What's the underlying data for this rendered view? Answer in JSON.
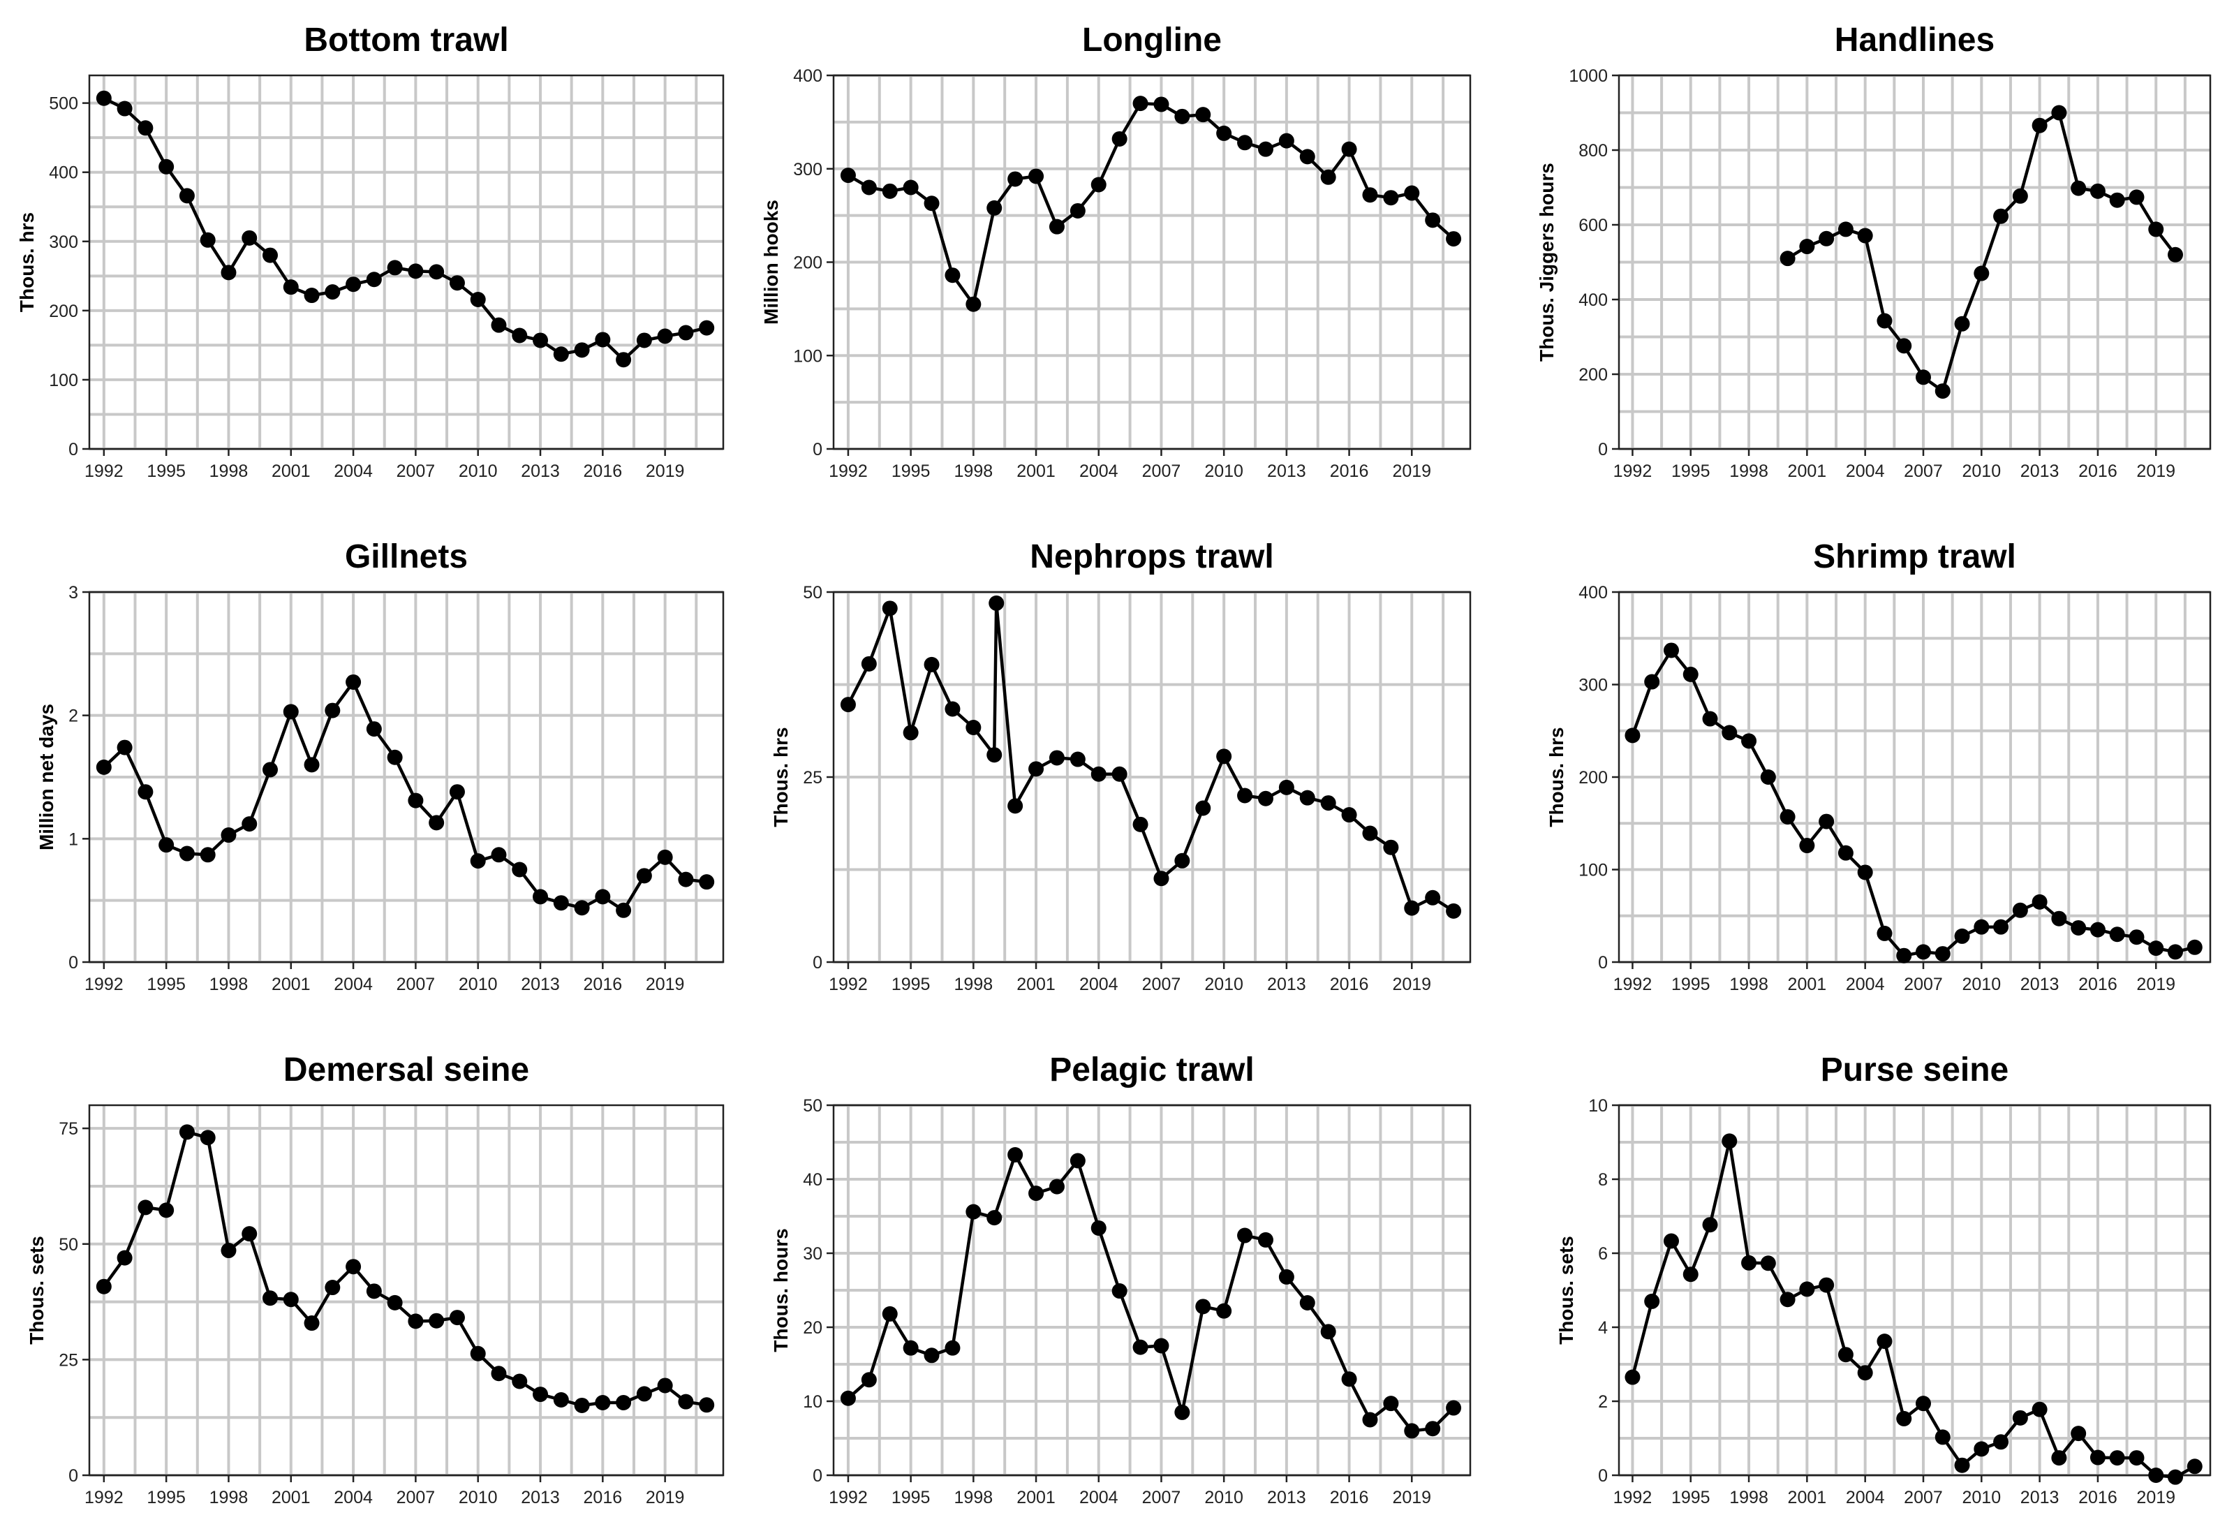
{
  "chart_data": [
    {
      "type": "line",
      "title": "Bottom trawl",
      "ylabel": "Thous. hrs",
      "xlabel": "",
      "ylim": [
        0,
        540
      ],
      "yticks": [
        0,
        100,
        200,
        300,
        400,
        500
      ],
      "xlim": [
        1991.3,
        2021.8
      ],
      "xticks": [
        1992,
        1995,
        1998,
        2001,
        2004,
        2007,
        2010,
        2013,
        2016,
        2019
      ],
      "grid": true,
      "x": [
        1992,
        1993,
        1994,
        1995,
        1996,
        1997,
        1998,
        1999,
        2000,
        2001,
        2002,
        2003,
        2004,
        2005,
        2006,
        2007,
        2008,
        2009,
        2010,
        2011,
        2012,
        2013,
        2014,
        2015,
        2016,
        2017,
        2018,
        2019,
        2020,
        2021
      ],
      "values": [
        507,
        492,
        464,
        408,
        366,
        302,
        255,
        305,
        280,
        234,
        222,
        227,
        238,
        245,
        262,
        257,
        256,
        240,
        216,
        179,
        164,
        157,
        137,
        143,
        158,
        129,
        157,
        163,
        168,
        175
      ]
    },
    {
      "type": "line",
      "title": "Longline",
      "ylabel": "Million hooks",
      "xlabel": "",
      "ylim": [
        0,
        400
      ],
      "yticks": [
        0,
        100,
        200,
        300,
        400
      ],
      "xlim": [
        1991.3,
        2021.8
      ],
      "xticks": [
        1992,
        1995,
        1998,
        2001,
        2004,
        2007,
        2010,
        2013,
        2016,
        2019
      ],
      "grid": true,
      "x": [
        1992,
        1993,
        1994,
        1995,
        1996,
        1997,
        1998,
        1999,
        2000,
        2001,
        2002,
        2003,
        2004,
        2005,
        2006,
        2007,
        2008,
        2009,
        2010,
        2011,
        2012,
        2013,
        2014,
        2015,
        2016,
        2017,
        2018,
        2019,
        2020,
        2021
      ],
      "values": [
        293,
        280,
        276,
        280,
        263,
        186,
        155,
        258,
        289,
        292,
        238,
        255,
        283,
        332,
        370,
        369,
        356,
        358,
        338,
        328,
        321,
        330,
        313,
        291,
        321,
        272,
        269,
        274,
        245,
        225
      ]
    },
    {
      "type": "line",
      "title": "Handlines",
      "ylabel": "Thous. Jiggers hours",
      "xlabel": "",
      "ylim": [
        0,
        1000
      ],
      "yticks": [
        0,
        200,
        400,
        600,
        800,
        1000
      ],
      "xlim": [
        1991.3,
        2021.8
      ],
      "xticks": [
        1992,
        1995,
        1998,
        2001,
        2004,
        2007,
        2010,
        2013,
        2016,
        2019
      ],
      "grid": true,
      "x": [
        2000,
        2001,
        2002,
        2003,
        2004,
        2005,
        2006,
        2007,
        2008,
        2009,
        2010,
        2011,
        2012,
        2013,
        2014,
        2015,
        2016,
        2017,
        2018,
        2019,
        2020
      ],
      "values": [
        510,
        542,
        563,
        588,
        571,
        343,
        276,
        192,
        155,
        335,
        470,
        623,
        677,
        866,
        900,
        698,
        690,
        666,
        674,
        588,
        520
      ]
    },
    {
      "type": "line",
      "title": "Gillnets",
      "ylabel": "Million net days",
      "xlabel": "",
      "ylim": [
        0,
        3
      ],
      "yticks": [
        0,
        1,
        2,
        3
      ],
      "xlim": [
        1991.3,
        2021.8
      ],
      "xticks": [
        1992,
        1995,
        1998,
        2001,
        2004,
        2007,
        2010,
        2013,
        2016,
        2019
      ],
      "grid": true,
      "x": [
        1992,
        1993,
        1994,
        1995,
        1996,
        1997,
        1998,
        1999,
        2000,
        2001,
        2002,
        2003,
        2004,
        2005,
        2006,
        2007,
        2008,
        2009,
        2010,
        2011,
        2012,
        2013,
        2014,
        2015,
        2016,
        2017,
        2018,
        2019,
        2020,
        2021
      ],
      "values": [
        1.58,
        1.74,
        1.38,
        0.95,
        0.88,
        0.87,
        1.03,
        1.12,
        1.56,
        2.03,
        1.6,
        2.04,
        2.27,
        1.89,
        1.66,
        1.31,
        1.13,
        1.38,
        0.82,
        0.87,
        0.75,
        0.53,
        0.48,
        0.44,
        0.53,
        0.42,
        0.7,
        0.85,
        0.67,
        0.65
      ]
    },
    {
      "type": "line",
      "title": "Nephrops trawl",
      "ylabel": "Thous. hrs",
      "xlabel": "",
      "ylim": [
        0,
        50
      ],
      "yticks": [
        0,
        25,
        50
      ],
      "xlim": [
        1991.3,
        2021.8
      ],
      "xticks": [
        1992,
        1995,
        1998,
        2001,
        2004,
        2007,
        2010,
        2013,
        2016,
        2019
      ],
      "grid": true,
      "x": [
        1992,
        1993,
        1994,
        1995,
        1996,
        1997,
        1998,
        1999,
        1999.1,
        2000,
        2001,
        2002,
        2003,
        2004,
        2005,
        2006,
        2007,
        2008,
        2009,
        2010,
        2011,
        2012,
        2013,
        2014,
        2015,
        2016,
        2017,
        2018,
        2019,
        2020,
        2021
      ],
      "values": [
        34.8,
        40.3,
        47.8,
        31.0,
        40.2,
        34.2,
        31.7,
        28.0,
        48.5,
        21.1,
        26.1,
        27.6,
        27.4,
        25.4,
        25.4,
        18.6,
        11.3,
        13.7,
        20.8,
        27.8,
        22.5,
        22.1,
        23.6,
        22.2,
        21.5,
        19.9,
        17.4,
        15.5,
        7.3,
        8.7,
        6.9
      ]
    },
    {
      "type": "line",
      "title": "Shrimp trawl",
      "ylabel": "Thous. hrs",
      "xlabel": "",
      "ylim": [
        0,
        400
      ],
      "yticks": [
        0,
        100,
        200,
        300,
        400
      ],
      "xlim": [
        1991.3,
        2021.8
      ],
      "xticks": [
        1992,
        1995,
        1998,
        2001,
        2004,
        2007,
        2010,
        2013,
        2016,
        2019
      ],
      "grid": true,
      "x": [
        1992,
        1993,
        1994,
        1995,
        1996,
        1997,
        1998,
        1999,
        2000,
        2001,
        2002,
        2003,
        2004,
        2005,
        2006,
        2007,
        2008,
        2009,
        2010,
        2011,
        2012,
        2013,
        2014,
        2015,
        2016,
        2017,
        2018,
        2019,
        2020,
        2021
      ],
      "values": [
        245,
        303,
        337,
        311,
        263,
        248,
        239,
        200,
        157,
        126,
        152,
        118,
        97,
        31,
        7,
        11,
        9,
        28,
        38,
        38,
        56,
        65,
        47,
        37,
        35,
        30,
        27,
        15,
        11,
        16
      ]
    },
    {
      "type": "line",
      "title": "Demersal seine",
      "ylabel": "Thous. sets",
      "xlabel": "",
      "ylim": [
        0,
        80
      ],
      "yticks": [
        0,
        25,
        50,
        75
      ],
      "xlim": [
        1991.3,
        2021.8
      ],
      "xticks": [
        1992,
        1995,
        1998,
        2001,
        2004,
        2007,
        2010,
        2013,
        2016,
        2019
      ],
      "grid": true,
      "x": [
        1992,
        1993,
        1994,
        1995,
        1996,
        1997,
        1998,
        1999,
        2000,
        2001,
        2002,
        2003,
        2004,
        2005,
        2006,
        2007,
        2008,
        2009,
        2010,
        2011,
        2012,
        2013,
        2014,
        2015,
        2016,
        2017,
        2018,
        2019,
        2020,
        2021
      ],
      "values": [
        40.8,
        47.0,
        57.9,
        57.3,
        74.2,
        73.0,
        48.6,
        52.2,
        38.3,
        38.0,
        32.9,
        40.6,
        45.1,
        39.8,
        37.3,
        33.3,
        33.4,
        34.1,
        26.3,
        22.0,
        20.3,
        17.5,
        16.3,
        15.1,
        15.7,
        15.7,
        17.6,
        19.4,
        15.9,
        15.2
      ]
    },
    {
      "type": "line",
      "title": "Pelagic trawl",
      "ylabel": "Thous. hours",
      "xlabel": "",
      "ylim": [
        0,
        50
      ],
      "yticks": [
        0,
        10,
        20,
        30,
        40,
        50
      ],
      "xlim": [
        1991.3,
        2021.8
      ],
      "xticks": [
        1992,
        1995,
        1998,
        2001,
        2004,
        2007,
        2010,
        2013,
        2016,
        2019
      ],
      "grid": true,
      "x": [
        1992,
        1993,
        1994,
        1995,
        1996,
        1997,
        1998,
        1999,
        2000,
        2001,
        2002,
        2003,
        2004,
        2005,
        2006,
        2007,
        2008,
        2009,
        2010,
        2011,
        2012,
        2013,
        2014,
        2015,
        2016,
        2017,
        2018,
        2019,
        2020,
        2021
      ],
      "values": [
        10.4,
        12.9,
        21.8,
        17.2,
        16.2,
        17.2,
        35.6,
        34.8,
        43.3,
        38.1,
        39.0,
        42.5,
        33.4,
        24.9,
        17.3,
        17.5,
        8.5,
        22.8,
        22.2,
        32.4,
        31.8,
        26.8,
        23.3,
        19.4,
        13.0,
        7.5,
        9.7,
        6.0,
        6.3,
        9.1
      ]
    },
    {
      "type": "line",
      "title": "Purse seine",
      "ylabel": "Thous. sets",
      "xlabel": "",
      "ylim": [
        0,
        10
      ],
      "yticks": [
        0,
        2,
        4,
        6,
        8,
        10
      ],
      "xlim": [
        1991.3,
        2021.8
      ],
      "xticks": [
        1992,
        1995,
        1998,
        2001,
        2004,
        2007,
        2010,
        2013,
        2016,
        2019
      ],
      "grid": true,
      "x": [
        1992,
        1993,
        1994,
        1995,
        1996,
        1997,
        1998,
        1999,
        2000,
        2001,
        2002,
        2003,
        2004,
        2005,
        2006,
        2007,
        2008,
        2009,
        2010,
        2011,
        2012,
        2013,
        2014,
        2015,
        2016,
        2017,
        2018,
        2019,
        2020,
        2021
      ],
      "values": [
        2.65,
        4.7,
        6.33,
        5.43,
        6.77,
        9.03,
        5.74,
        5.73,
        4.75,
        5.03,
        5.14,
        3.26,
        2.77,
        3.62,
        1.53,
        1.94,
        1.03,
        0.27,
        0.71,
        0.9,
        1.55,
        1.78,
        0.47,
        1.13,
        0.48,
        0.47,
        0.47,
        0.0,
        -0.05,
        0.24
      ]
    }
  ]
}
